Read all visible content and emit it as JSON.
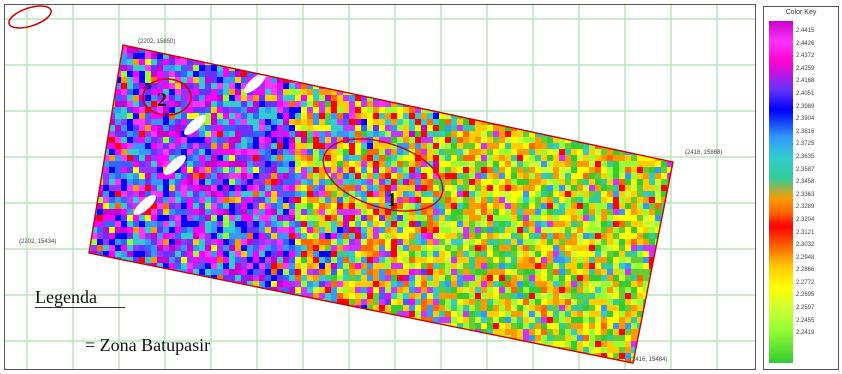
{
  "map": {
    "corner_labels": {
      "top_left": "(2202, 15850)",
      "right": "(2416, 15868)",
      "left": "(2202, 15434)",
      "bottom_right": "(2416, 15484)"
    },
    "zones": [
      {
        "label": "1"
      },
      {
        "label": "2"
      }
    ],
    "legend": {
      "title": "Legenda",
      "item_label": "= Zona Batupasir",
      "item_color": "#cc0000"
    }
  },
  "color_key": {
    "title": "Color Key",
    "values": [
      "2.4415",
      "2.4426",
      "2.4372",
      "2.4259",
      "2.4168",
      "2.4051",
      "2.3989",
      "2.3904",
      "2.3816",
      "2.3725",
      "2.3635",
      "2.3587",
      "2.3458",
      "2.3363",
      "2.3289",
      "2.3204",
      "2.3121",
      "2.3032",
      "2.2948",
      "2.2866",
      "2.2772",
      "2.2695",
      "2.2597",
      "2.2455",
      "2.2419"
    ]
  }
}
